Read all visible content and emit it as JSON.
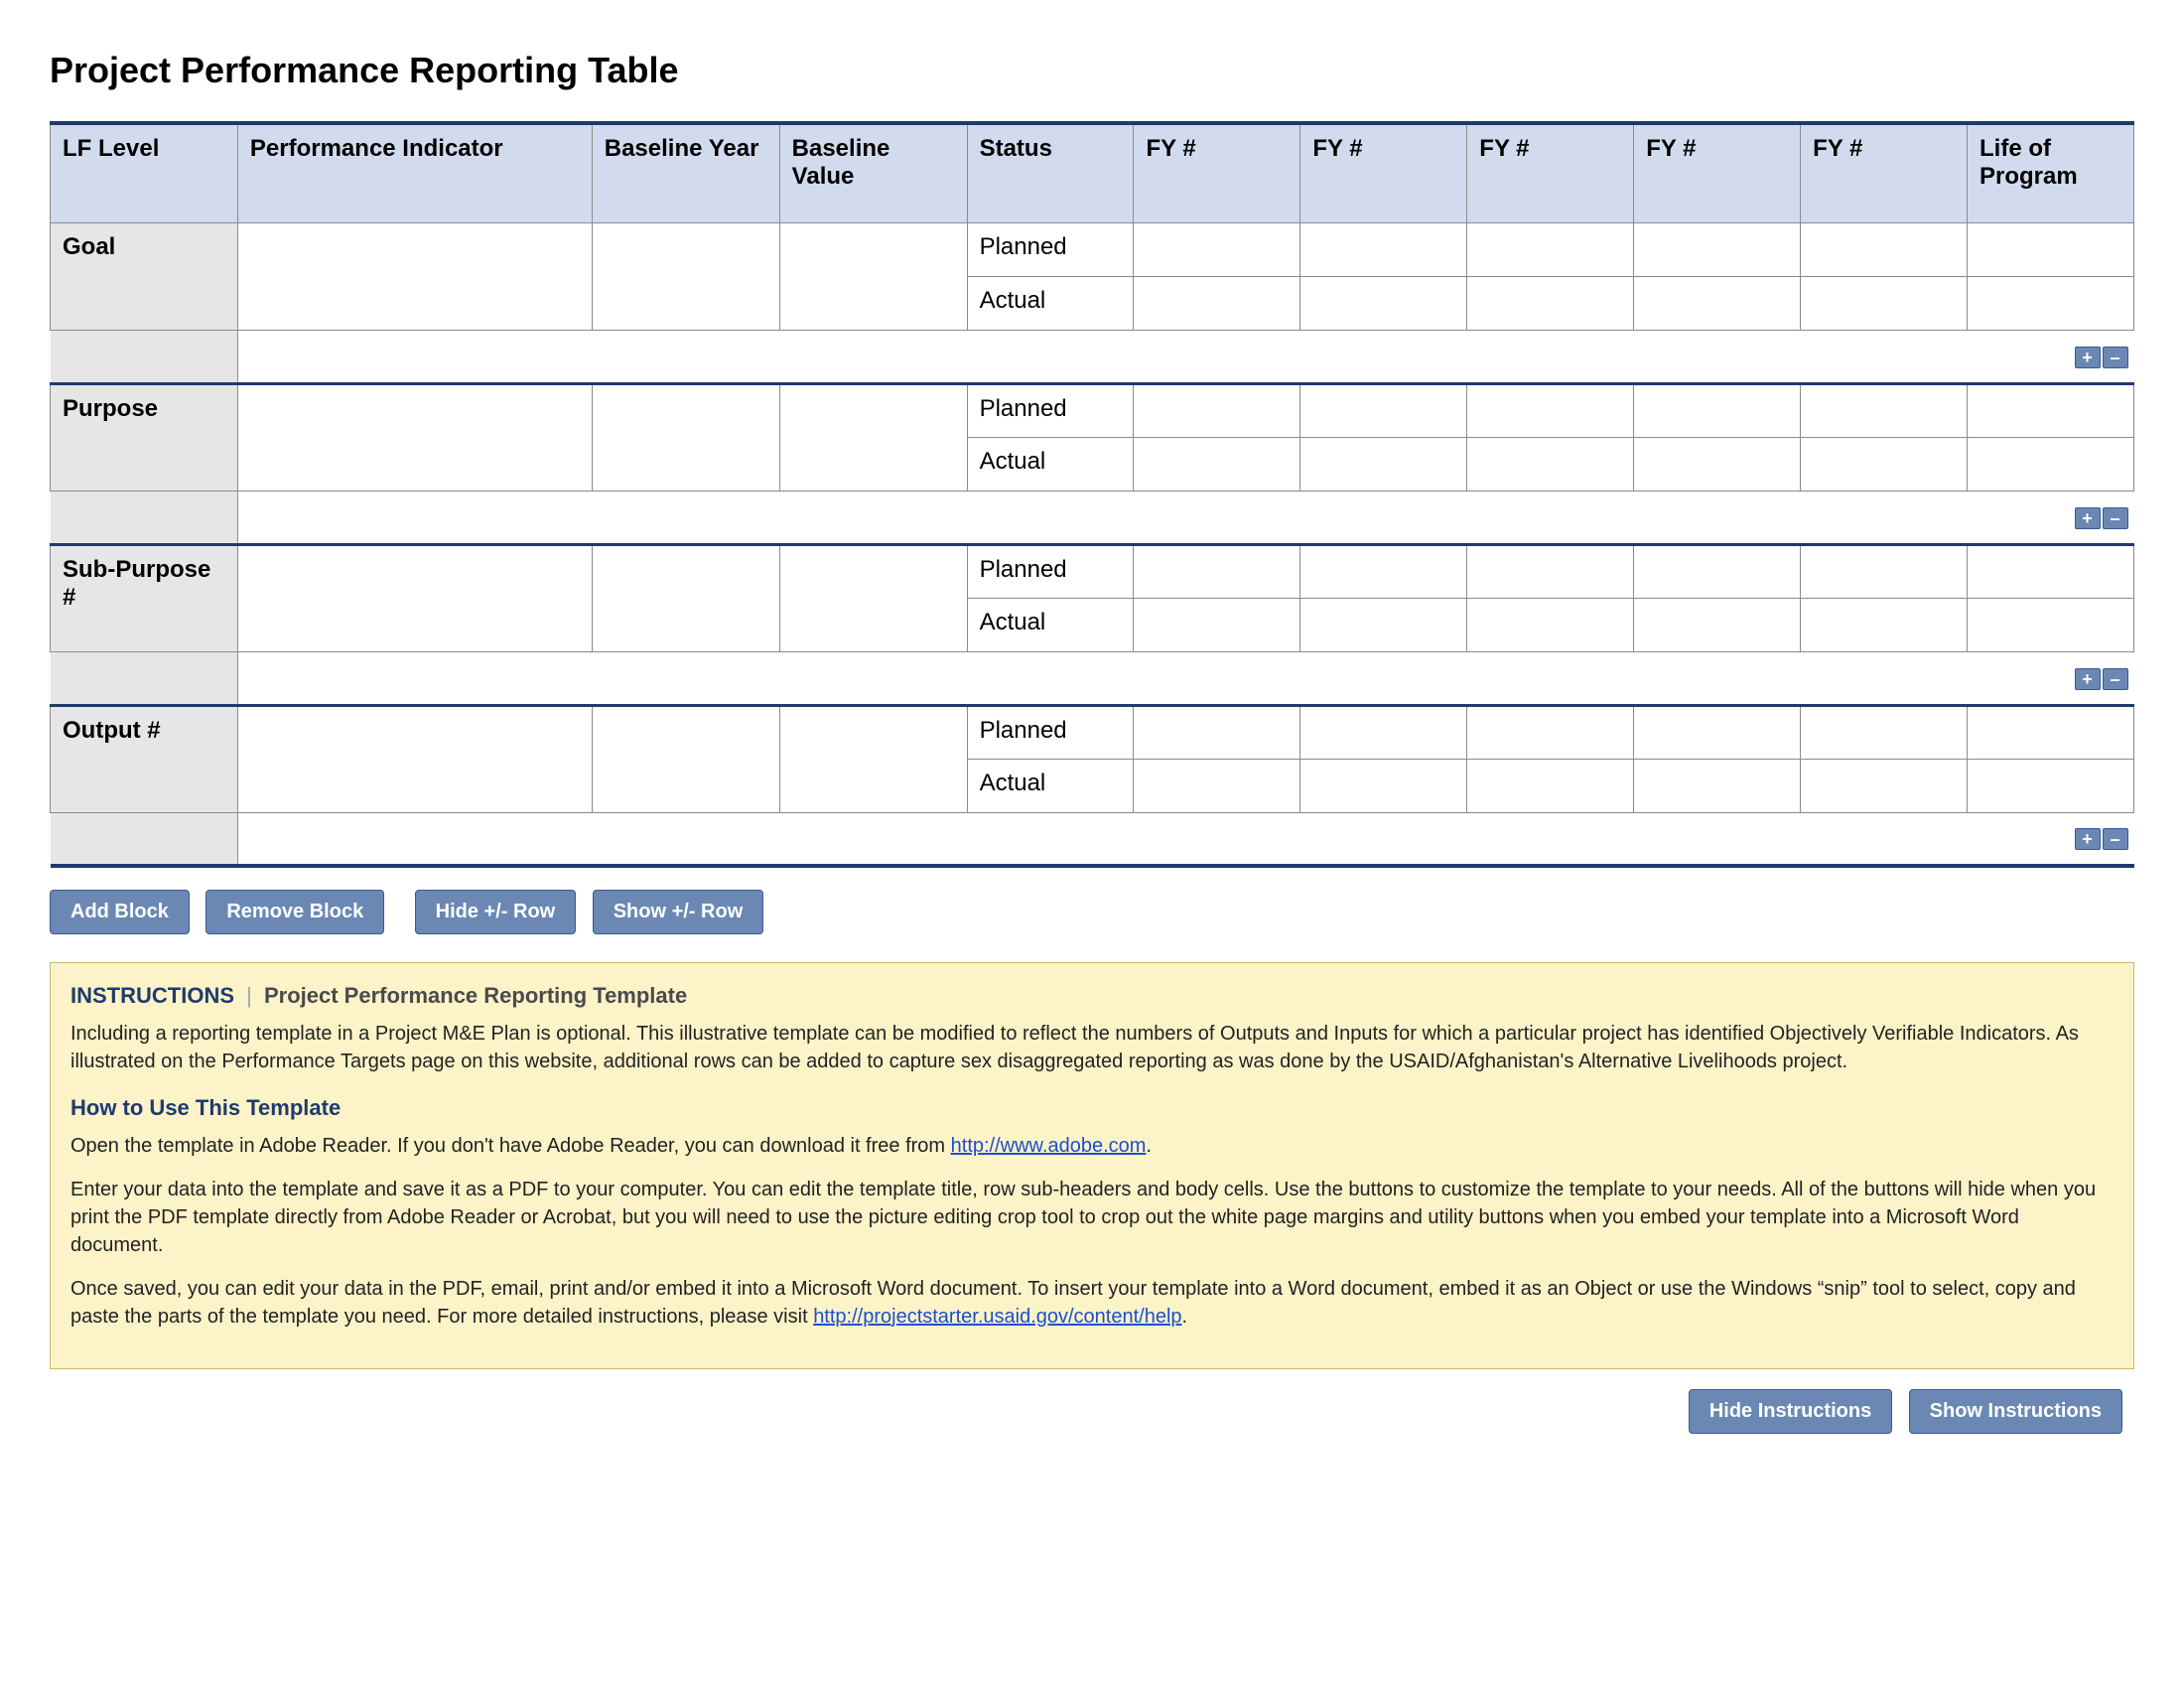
{
  "title": "Project Performance Reporting Table",
  "colors": {
    "accent": "#1f3a6e",
    "header_bg": "#d1dbed",
    "lf_bg": "#e6e6e6",
    "button_bg": "#6b88b5",
    "button_border": "#3a5a8f",
    "instructions_bg": "#fdf3c8",
    "instructions_border": "#c9b96a",
    "link": "#1a4fd1"
  },
  "table": {
    "headers": [
      "LF Level",
      "Performance Indicator",
      "Baseline Year",
      "Baseline Value",
      "Status",
      "FY #",
      "FY #",
      "FY #",
      "FY #",
      "FY #",
      "Life of Program"
    ],
    "status_labels": {
      "planned": "Planned",
      "actual": "Actual"
    },
    "pm_labels": {
      "plus": "+",
      "minus": "–"
    },
    "sections": [
      {
        "lf": "Goal"
      },
      {
        "lf": "Purpose"
      },
      {
        "lf": "Sub-Purpose #"
      },
      {
        "lf": "Output #"
      }
    ]
  },
  "action_buttons": {
    "add_block": "Add Block",
    "remove_block": "Remove Block",
    "hide_row": "Hide +/- Row",
    "show_row": "Show +/- Row"
  },
  "instructions": {
    "label": "INSTRUCTIONS",
    "subtitle": "Project Performance Reporting Template",
    "p1": "Including a reporting template in a Project M&E Plan is optional. This illustrative template can be modified to reflect the numbers of Outputs and Inputs for which a particular project has identified Objectively Verifiable Indicators. As illustrated on the Performance Targets page on this website, additional rows can be added to capture sex disaggregated reporting as was done by the USAID/Afghanistan's Alternative Livelihoods project.",
    "howto_heading": "How to Use This Template",
    "p2a": "Open the template in Adobe Reader. If you don't have Adobe Reader, you can download it free from ",
    "p2_link": "http://www.adobe.com",
    "p2b": ".",
    "p3": "Enter your data into the template and save it as a PDF to your computer. You can edit the template title, row sub-headers and body cells. Use the buttons to customize the template to your needs. All of the buttons will hide when you print the PDF template directly from Adobe Reader or Acrobat, but you will need to use the picture editing crop tool to crop out the white page margins and utility buttons when you embed your template into a Microsoft Word document.",
    "p4a": "Once saved, you can edit your data in the PDF, email, print and/or embed it into a Microsoft Word document. To insert your template into a Word document, embed it as an Object or use the Windows “snip” tool to select, copy and paste the parts of the template you need. For more detailed instructions, please visit ",
    "p4_link": "http://projectstarter.usaid.gov/content/help",
    "p4b": "."
  },
  "bottom_buttons": {
    "hide": "Hide Instructions",
    "show": "Show Instructions"
  }
}
